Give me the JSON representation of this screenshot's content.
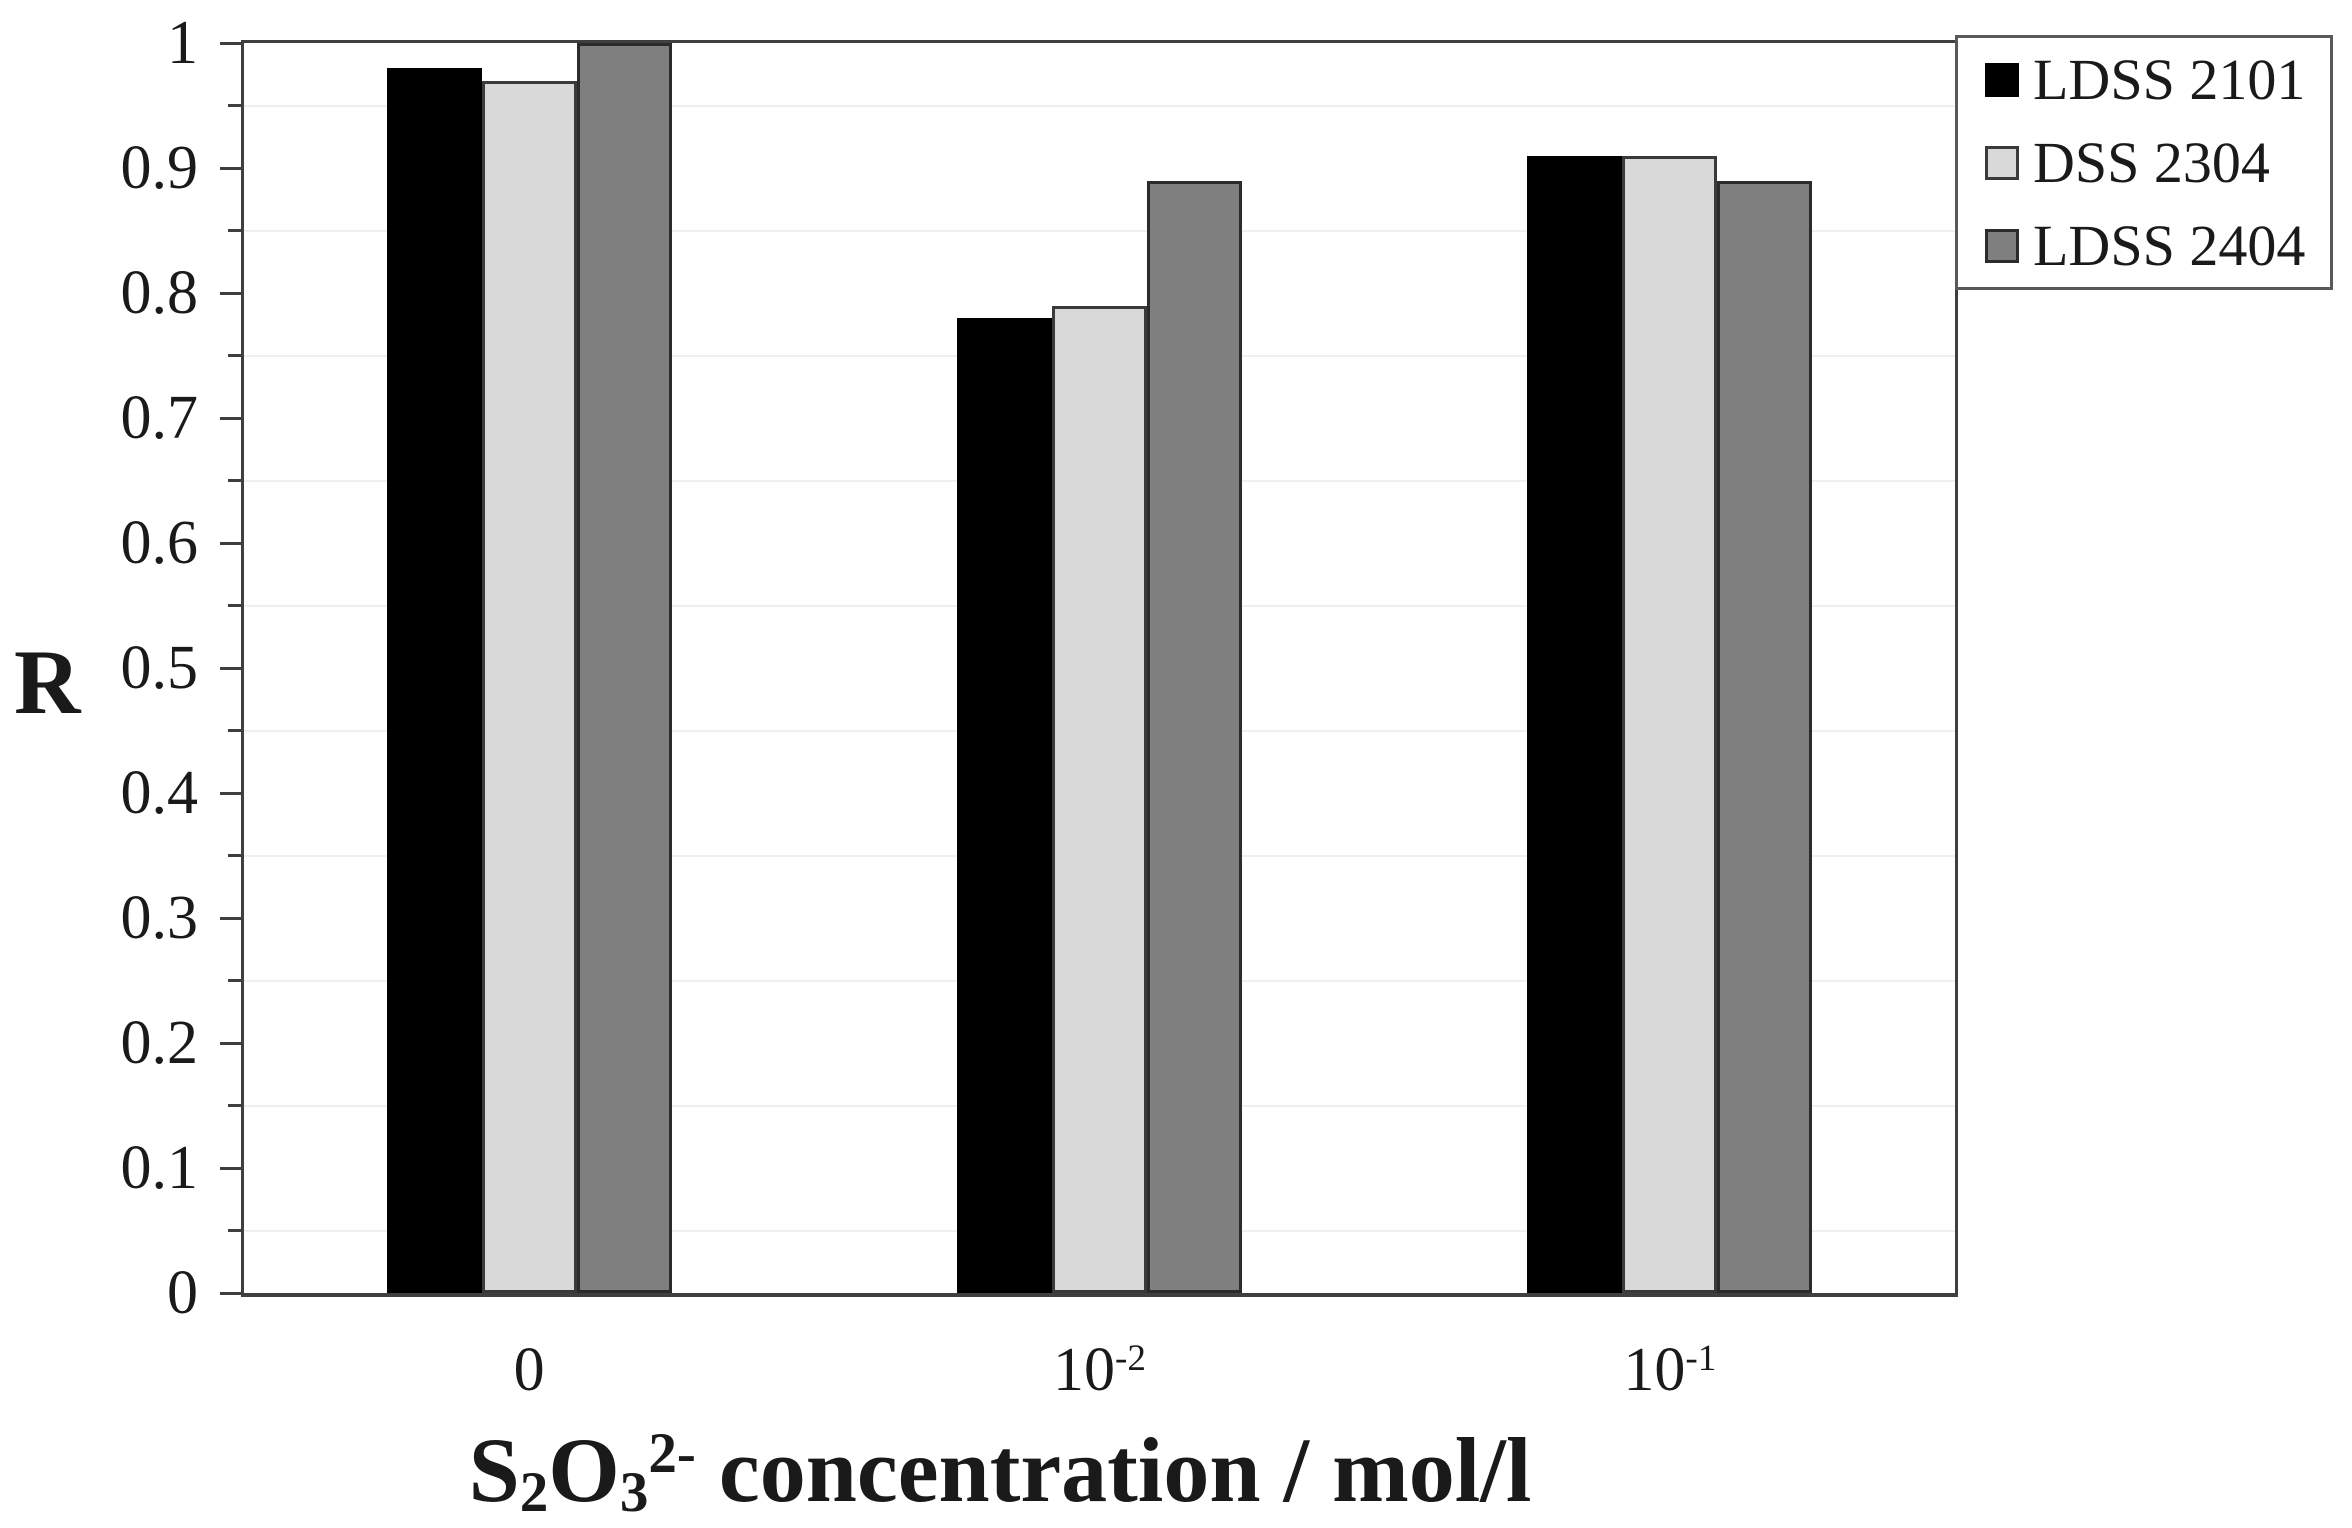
{
  "chart_data": {
    "type": "bar",
    "title": "",
    "ylabel": "R",
    "xlabel_text": "S₂O₃²⁻ concentration / mol/l",
    "xlabel_parts": [
      {
        "t": "S"
      },
      {
        "t": "2",
        "pos": "sub"
      },
      {
        "t": "O"
      },
      {
        "t": "3",
        "pos": "sub"
      },
      {
        "t": "2-",
        "pos": "sup"
      },
      {
        "t": " concentration / mol/l"
      }
    ],
    "categories": [
      {
        "base": "0",
        "sup": ""
      },
      {
        "base": "10",
        "sup": "-2"
      },
      {
        "base": "10",
        "sup": "-1"
      }
    ],
    "series": [
      {
        "name": "LDSS 2101",
        "color": "#000000",
        "border": "#000000",
        "values": [
          0.98,
          0.78,
          0.91
        ]
      },
      {
        "name": "DSS 2304",
        "color": "#d9d9d9",
        "border": "#3a3a3a",
        "values": [
          0.97,
          0.79,
          0.91
        ]
      },
      {
        "name": "LDSS 2404",
        "color": "#7f7f7f",
        "border": "#2b2b2b",
        "values": [
          1.0,
          0.89,
          0.89
        ]
      }
    ],
    "ylim": [
      0,
      1
    ],
    "ytick_major": 0.1,
    "ytick_minor": 0.05,
    "ytick_labels": [
      "0",
      "0.1",
      "0.2",
      "0.3",
      "0.4",
      "0.5",
      "0.6",
      "0.7",
      "0.8",
      "0.9",
      "1"
    ],
    "gridlines": {
      "style": "minor_only",
      "color": "#efefef"
    },
    "legend_position": "top-right",
    "axis_color": "#3f3f3f",
    "text_color": "#1a1a1a",
    "legend_border_color": "#595959",
    "background": "#ffffff"
  }
}
